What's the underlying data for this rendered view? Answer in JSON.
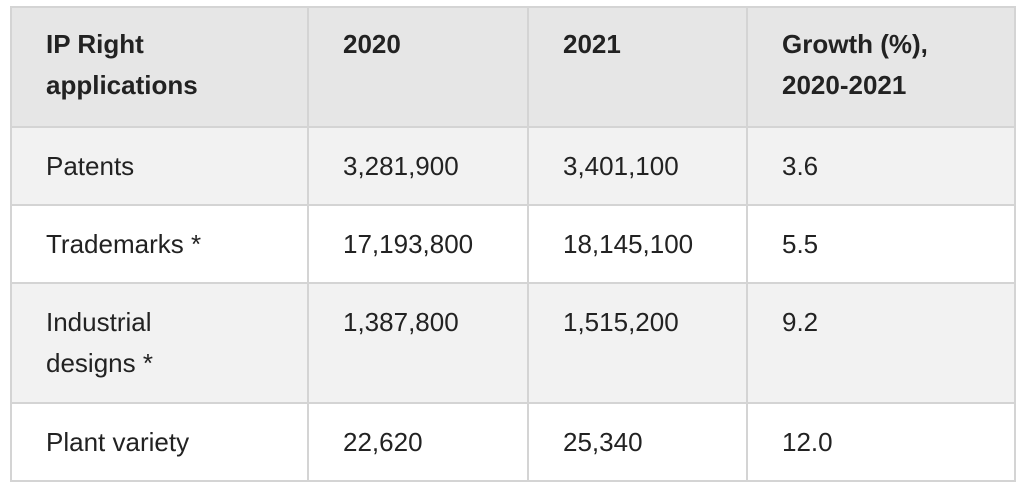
{
  "table": {
    "header": [
      "IP Right applications",
      "2020",
      "2021",
      "Growth (%), 2020-2021"
    ],
    "rows": [
      [
        "Patents",
        "3,281,900",
        "3,401,100",
        "3.6"
      ],
      [
        "Trademarks *",
        "17,193,800",
        "18,145,100",
        "5.5"
      ],
      [
        "Industrial designs *",
        "1,387,800",
        "1,515,200",
        "9.2"
      ],
      [
        "Plant variety",
        "22,620",
        "25,340",
        "12.0"
      ]
    ]
  }
}
